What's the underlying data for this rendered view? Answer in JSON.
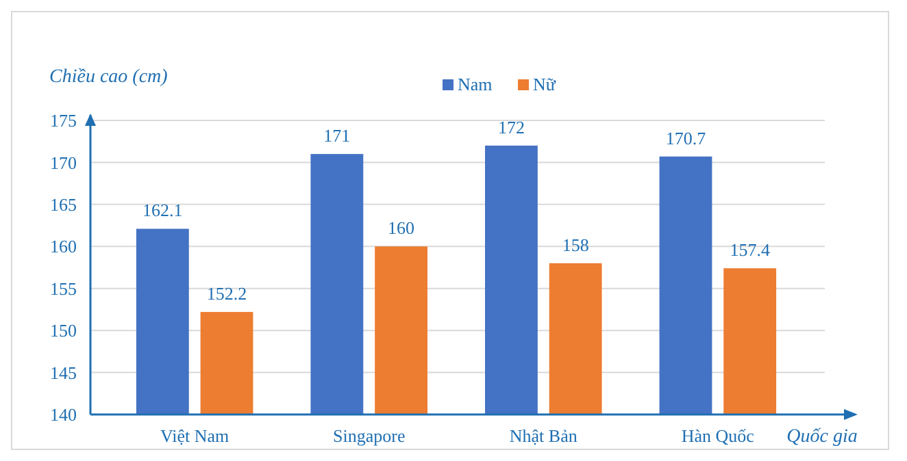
{
  "chart_data": {
    "type": "bar",
    "xlabel": "Quốc gia",
    "ylabel": "Chiều cao (cm)",
    "categories": [
      "Việt Nam",
      "Singapore",
      "Nhật Bản",
      "Hàn Quốc"
    ],
    "series": [
      {
        "name": "Nam",
        "color": "#4472c4",
        "values": [
          162.1,
          171,
          172,
          170.7
        ]
      },
      {
        "name": "Nữ",
        "color": "#ed7d31",
        "values": [
          152.2,
          160,
          158,
          157.4
        ]
      }
    ],
    "ylim": [
      140,
      175
    ],
    "yticks": [
      140,
      145,
      150,
      155,
      160,
      165,
      170,
      175
    ],
    "grid": "y",
    "legend": "top",
    "data_labels": true
  }
}
